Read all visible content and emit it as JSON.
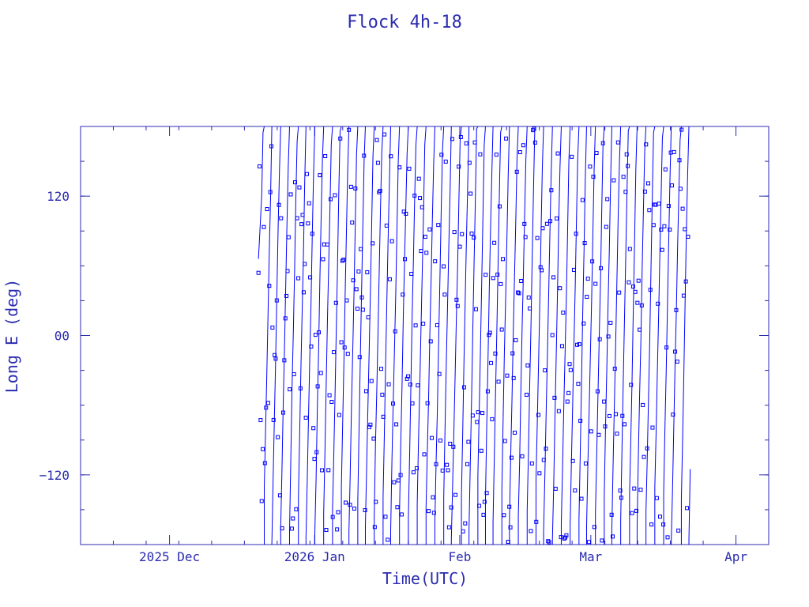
{
  "chart_data": {
    "type": "line",
    "title": "Flock 4h-18",
    "xlabel": "Time(UTC)",
    "ylabel": "Long E (deg)",
    "xlim": [
      "2025-11-12",
      "2026-04-08"
    ],
    "ylim": [
      -180,
      180
    ],
    "x_ticks": [
      {
        "label": "2025 Dec",
        "date": "2025-12-01"
      },
      {
        "label": "2026 Jan",
        "date": "2026-01-01"
      },
      {
        "label": "Feb",
        "date": "2026-02-01"
      },
      {
        "label": "Mar",
        "date": "2026-03-01"
      },
      {
        "label": "Apr",
        "date": "2026-04-01"
      }
    ],
    "y_ticks": [
      {
        "label": "120",
        "value": 120
      },
      {
        "label": "00",
        "value": 0
      },
      {
        "label": "−120",
        "value": -120
      }
    ],
    "grid": false,
    "legend": "none",
    "color": "#0000ff",
    "markers": "square",
    "data_start": "2025-12-20",
    "data_end": "2026-03-22",
    "data_start_value": 66,
    "drift": "longitude sweeps through -180 to 180 and wraps repeatedly over the period"
  }
}
